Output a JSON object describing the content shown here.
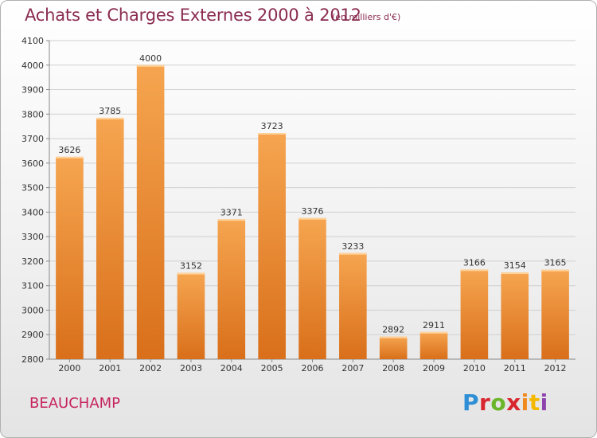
{
  "title": "Achats et Charges Externes 2000 à 2012",
  "unit": "(en milliers d'€)",
  "commune": "BEAUCHAMP",
  "logo": {
    "letters": [
      "P",
      "r",
      "o",
      "x",
      "i",
      "t",
      "i"
    ],
    "text": "Proxiti"
  },
  "colors": {
    "bar_top": "#f6a550",
    "bar_bottom": "#d96f1a",
    "title": "#8a2c50",
    "commune": "#c6245e",
    "grid": "#d0d0d0"
  },
  "chart_data": {
    "type": "bar",
    "categories": [
      "2000",
      "2001",
      "2002",
      "2003",
      "2004",
      "2005",
      "2006",
      "2007",
      "2008",
      "2009",
      "2010",
      "2011",
      "2012"
    ],
    "values": [
      3626,
      3785,
      4000,
      3152,
      3371,
      3723,
      3376,
      3233,
      2892,
      2911,
      3166,
      3154,
      3165
    ],
    "ylim": [
      2800,
      4100
    ],
    "yticks": [
      2800,
      2900,
      3000,
      3100,
      3200,
      3300,
      3400,
      3500,
      3600,
      3700,
      3800,
      3900,
      4000,
      4100
    ],
    "title": "Achats et Charges Externes 2000 à 2012",
    "xlabel": "",
    "ylabel": "",
    "grid": true,
    "data_labels": true
  }
}
